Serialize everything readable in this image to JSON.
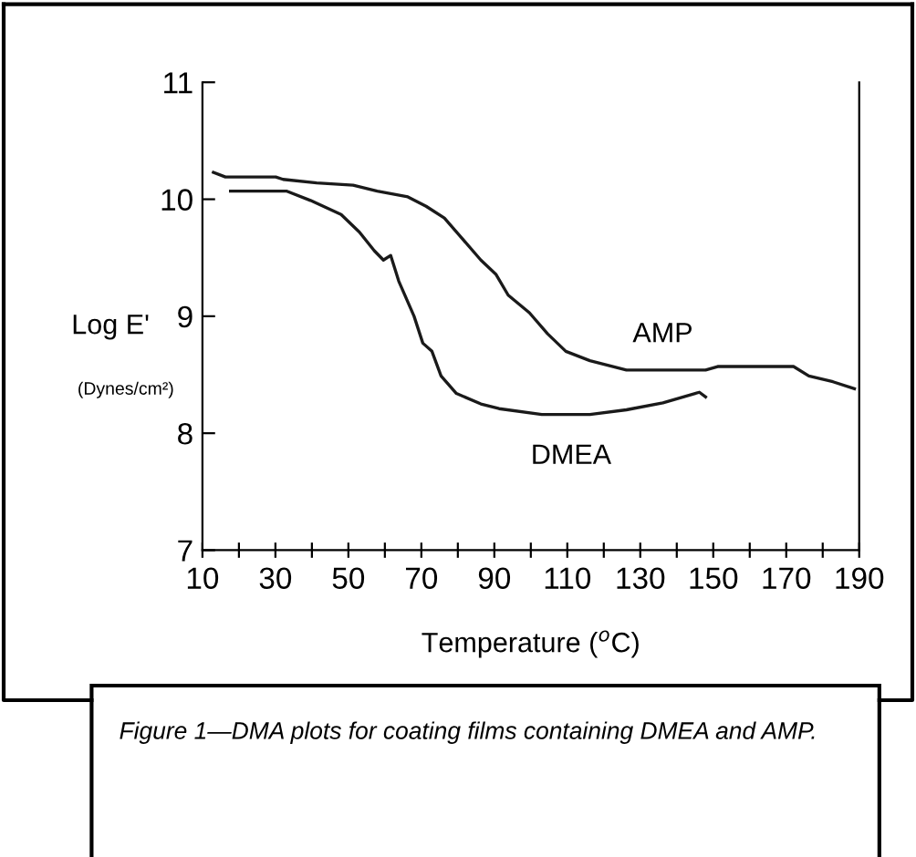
{
  "chart_data": {
    "type": "line",
    "xlabel": "Temperature ($^{o}$C)",
    "ylabel": "Log E'",
    "xlim": [
      10,
      190
    ],
    "ylim": [
      7,
      11
    ],
    "xticks": [
      10,
      {
        "value": 20,
        "label": null
      },
      30,
      {
        "value": 40,
        "label": null
      },
      50,
      {
        "value": 60,
        "label": null
      },
      70,
      {
        "value": 80,
        "label": null
      },
      90,
      {
        "value": 100,
        "label": null
      },
      110,
      {
        "value": 120,
        "label": null
      },
      130,
      {
        "value": 140,
        "label": null
      },
      150,
      {
        "value": 160,
        "label": null
      },
      170,
      {
        "value": 180,
        "label": null
      },
      190
    ],
    "yticks": [
      7,
      8,
      9,
      10,
      11
    ],
    "grid": false,
    "legend": false,
    "marker": "none",
    "line_style": "solid",
    "series": [
      {
        "color": "#1a1a1a",
        "x": [
          13,
          16.3,
          30.1,
          32.1,
          41.3,
          51.3,
          57.9,
          66.3,
          71.3,
          76.3,
          81.3,
          86.3,
          90.4,
          93.8,
          99.6,
          104.6,
          109.6,
          116.2,
          126.2,
          147.9,
          151.2,
          172,
          176.2,
          182.8,
          188.7
        ],
        "values": [
          10.23,
          10.19,
          10.19,
          10.17,
          10.14,
          10.12,
          10.07,
          10.02,
          9.94,
          9.84,
          9.66,
          9.48,
          9.36,
          9.18,
          9.03,
          8.85,
          8.7,
          8.62,
          8.54,
          8.54,
          8.57,
          8.57,
          8.49,
          8.44,
          8.38
        ]
      },
      {
        "color": "#1a1a1a",
        "x": [
          17.7,
          33,
          39.6,
          48,
          53,
          57.1,
          59.6,
          61.6,
          63.8,
          68,
          70.4,
          72.9,
          75.4,
          79.6,
          86.3,
          91.3,
          103,
          116.2,
          126.2,
          136.2,
          146.2,
          147.9
        ],
        "values": [
          10.07,
          10.07,
          9.99,
          9.87,
          9.72,
          9.56,
          9.48,
          9.52,
          9.3,
          9.0,
          8.77,
          8.7,
          8.49,
          8.34,
          8.25,
          8.21,
          8.16,
          8.16,
          8.2,
          8.26,
          8.35,
          8.31
        ]
      }
    ],
    "annotations": [
      "AMP",
      "DMEA",
      "(Dynes/cm²)",
      "Figure 1—DMA plots for coating films containing DMEA and AMP."
    ]
  }
}
